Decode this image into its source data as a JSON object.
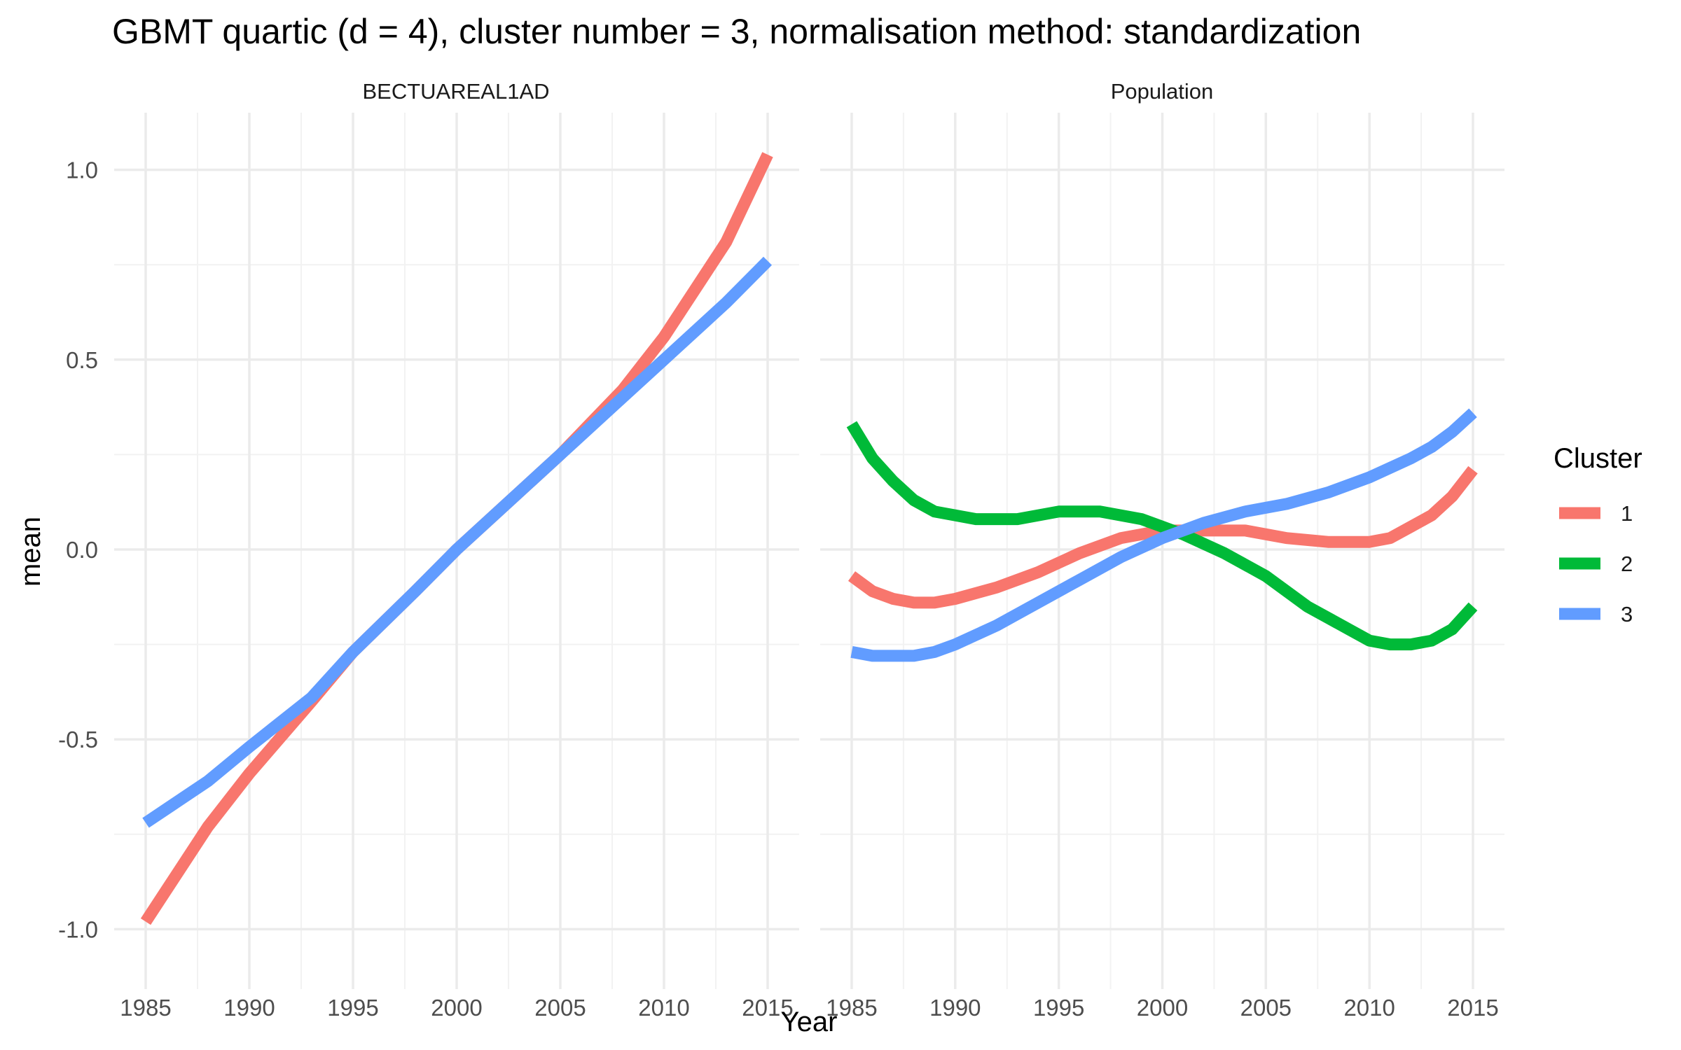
{
  "chart_data": {
    "type": "line",
    "title": "GBMT quartic (d = 4), cluster number = 3, normalisation method: standardization",
    "xlabel": "Year",
    "ylabel": "mean",
    "xlim": [
      1985,
      2015
    ],
    "ylim": [
      -1.0,
      1.0
    ],
    "x_ticks": [
      "1985",
      "1990",
      "1995",
      "2000",
      "2005",
      "2010",
      "2015"
    ],
    "y_ticks": [
      "-1.0",
      "-0.5",
      "0.0",
      "0.5",
      "1.0"
    ],
    "grid": true,
    "legend": {
      "title": "Cluster",
      "position": "right",
      "entries": [
        {
          "label": "1",
          "color": "#F8766D"
        },
        {
          "label": "2",
          "color": "#00BA38"
        },
        {
          "label": "3",
          "color": "#619CFF"
        }
      ]
    },
    "panels": [
      {
        "strip": "BECTUAREAL1AD",
        "series": [
          {
            "cluster": "1",
            "color": "#F8766D",
            "x": [
              1985,
              1988,
              1990,
              1993,
              1995,
              1998,
              2000,
              2003,
              2005,
              2008,
              2010,
              2013,
              2015
            ],
            "y": [
              -0.98,
              -0.73,
              -0.59,
              -0.4,
              -0.27,
              -0.11,
              0.0,
              0.15,
              0.25,
              0.42,
              0.56,
              0.81,
              1.04
            ]
          },
          {
            "cluster": "3",
            "color": "#619CFF",
            "x": [
              1985,
              1988,
              1990,
              1993,
              1995,
              1998,
              2000,
              2003,
              2005,
              2008,
              2010,
              2013,
              2015
            ],
            "y": [
              -0.72,
              -0.61,
              -0.52,
              -0.39,
              -0.27,
              -0.11,
              0.0,
              0.15,
              0.25,
              0.4,
              0.5,
              0.65,
              0.76
            ]
          }
        ]
      },
      {
        "strip": "Population",
        "series": [
          {
            "cluster": "1",
            "color": "#F8766D",
            "x": [
              1985,
              1986,
              1987,
              1988,
              1989,
              1990,
              1992,
              1994,
              1996,
              1998,
              2000,
              2002,
              2004,
              2006,
              2008,
              2010,
              2011,
              2012,
              2013,
              2014,
              2015
            ],
            "y": [
              -0.07,
              -0.11,
              -0.13,
              -0.14,
              -0.14,
              -0.13,
              -0.1,
              -0.06,
              -0.01,
              0.03,
              0.05,
              0.05,
              0.05,
              0.03,
              0.02,
              0.02,
              0.03,
              0.06,
              0.09,
              0.14,
              0.21
            ]
          },
          {
            "cluster": "2",
            "color": "#00BA38",
            "x": [
              1985,
              1986,
              1987,
              1988,
              1989,
              1990,
              1991,
              1993,
              1995,
              1997,
              1999,
              2001,
              2003,
              2005,
              2007,
              2009,
              2010,
              2011,
              2012,
              2013,
              2014,
              2015
            ],
            "y": [
              0.33,
              0.24,
              0.18,
              0.13,
              0.1,
              0.09,
              0.08,
              0.08,
              0.1,
              0.1,
              0.08,
              0.04,
              -0.01,
              -0.07,
              -0.15,
              -0.21,
              -0.24,
              -0.25,
              -0.25,
              -0.24,
              -0.21,
              -0.15
            ]
          },
          {
            "cluster": "3",
            "color": "#619CFF",
            "x": [
              1985,
              1986,
              1987,
              1988,
              1989,
              1990,
              1992,
              1994,
              1996,
              1998,
              2000,
              2002,
              2004,
              2006,
              2008,
              2010,
              2012,
              2013,
              2014,
              2015
            ],
            "y": [
              -0.27,
              -0.28,
              -0.28,
              -0.28,
              -0.27,
              -0.25,
              -0.2,
              -0.14,
              -0.08,
              -0.02,
              0.03,
              0.07,
              0.1,
              0.12,
              0.15,
              0.19,
              0.24,
              0.27,
              0.31,
              0.36
            ]
          }
        ]
      }
    ]
  }
}
